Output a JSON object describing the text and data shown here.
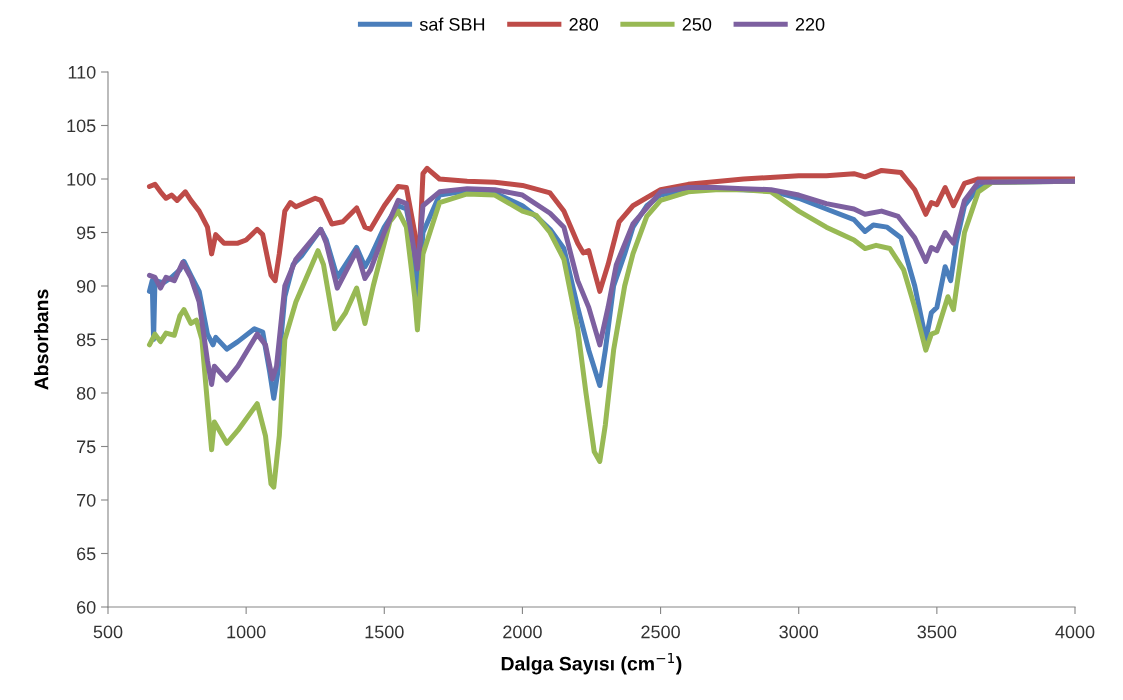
{
  "chart_data": {
    "type": "line",
    "xlabel": "Dalga Sayısı (cm$^{−1}$)",
    "ylabel": "Absorbans",
    "xlim": [
      500,
      4000
    ],
    "xticks": [
      500,
      1000,
      1500,
      2000,
      2500,
      3000,
      3500,
      4000
    ],
    "ylim": [
      60,
      110
    ],
    "yticks": [
      60,
      65,
      70,
      75,
      80,
      85,
      90,
      95,
      100,
      105,
      110
    ],
    "grid": false,
    "legend": "top",
    "marker": "none",
    "line_style": "solid",
    "series": [
      {
        "name": "saf SBH",
        "color": "#4a7ebb",
        "x": [
          650,
          660,
          665,
          670,
          700,
          730,
          760,
          775,
          800,
          830,
          860,
          880,
          890,
          930,
          970,
          1030,
          1060,
          1085,
          1100,
          1115,
          1140,
          1170,
          1200,
          1270,
          1290,
          1330,
          1400,
          1430,
          1450,
          1500,
          1550,
          1580,
          1605,
          1620,
          1640,
          1700,
          1800,
          1900,
          2000,
          2050,
          2100,
          2150,
          2200,
          2240,
          2280,
          2300,
          2330,
          2370,
          2400,
          2450,
          2500,
          2600,
          2700,
          2800,
          2900,
          3000,
          3100,
          3200,
          3240,
          3270,
          3320,
          3370,
          3420,
          3460,
          3480,
          3500,
          3530,
          3550,
          3570,
          3600,
          3650,
          3700,
          4000
        ],
        "values": [
          89.5,
          90.5,
          85,
          90.5,
          90.3,
          90.8,
          91.5,
          92.3,
          91,
          89.5,
          85.5,
          84.5,
          85.2,
          84.1,
          84.8,
          86,
          85.7,
          82,
          79.5,
          82,
          89,
          92,
          92.8,
          95.3,
          94.3,
          90.8,
          93.6,
          91.8,
          92.7,
          95.5,
          97.5,
          97.2,
          94,
          88,
          95,
          98.5,
          98.9,
          98.7,
          97.5,
          96.5,
          95.3,
          93.5,
          88,
          84,
          80.7,
          84,
          90,
          93,
          95.5,
          97.5,
          98.5,
          99,
          99.1,
          99,
          98.9,
          98.2,
          97.2,
          96.2,
          95.1,
          95.7,
          95.5,
          94.5,
          90,
          85,
          87.5,
          88,
          91.8,
          90.5,
          94,
          97.5,
          99.2,
          99.7,
          99.8
        ]
      },
      {
        "name": "280",
        "color": "#be4b48",
        "x": [
          650,
          670,
          690,
          710,
          730,
          750,
          780,
          800,
          830,
          860,
          875,
          890,
          920,
          970,
          1000,
          1040,
          1060,
          1090,
          1105,
          1120,
          1140,
          1160,
          1180,
          1250,
          1270,
          1310,
          1350,
          1400,
          1430,
          1450,
          1500,
          1550,
          1580,
          1610,
          1625,
          1640,
          1655,
          1700,
          1800,
          1900,
          2000,
          2100,
          2150,
          2200,
          2220,
          2240,
          2280,
          2310,
          2350,
          2400,
          2500,
          2600,
          2800,
          3000,
          3100,
          3200,
          3240,
          3300,
          3370,
          3420,
          3460,
          3480,
          3500,
          3530,
          3560,
          3600,
          3650,
          4000
        ],
        "values": [
          99.3,
          99.5,
          98.8,
          98.2,
          98.5,
          98,
          98.8,
          98,
          97,
          95.5,
          93,
          94.8,
          94,
          94,
          94.3,
          95.3,
          94.8,
          91,
          90.5,
          93,
          97,
          97.8,
          97.4,
          98.2,
          98,
          95.8,
          96,
          97.3,
          95.5,
          95.3,
          97.5,
          99.3,
          99.2,
          95,
          92,
          100.5,
          101,
          100,
          99.8,
          99.7,
          99.4,
          98.7,
          97,
          94,
          93.1,
          93.3,
          89.5,
          92,
          96,
          97.5,
          99,
          99.5,
          100,
          100.3,
          100.3,
          100.5,
          100.2,
          100.8,
          100.6,
          99,
          96.7,
          97.8,
          97.6,
          99.2,
          97.5,
          99.6,
          100,
          100
        ]
      },
      {
        "name": "250",
        "color": "#98b954",
        "x": [
          650,
          670,
          690,
          710,
          740,
          760,
          775,
          800,
          820,
          840,
          860,
          875,
          885,
          930,
          970,
          1040,
          1070,
          1090,
          1100,
          1120,
          1140,
          1180,
          1260,
          1280,
          1320,
          1360,
          1400,
          1430,
          1460,
          1520,
          1550,
          1580,
          1610,
          1620,
          1640,
          1700,
          1800,
          1900,
          2000,
          2050,
          2100,
          2150,
          2200,
          2230,
          2260,
          2280,
          2300,
          2330,
          2370,
          2400,
          2450,
          2500,
          2600,
          2700,
          2800,
          2900,
          3000,
          3100,
          3200,
          3240,
          3280,
          3330,
          3380,
          3420,
          3460,
          3480,
          3500,
          3540,
          3560,
          3600,
          3650,
          3700,
          4000
        ],
        "values": [
          84.5,
          85.5,
          84.8,
          85.6,
          85.4,
          87.2,
          87.8,
          86.5,
          86.8,
          85,
          79,
          74.7,
          77.3,
          75.3,
          76.5,
          79,
          76,
          71.5,
          71.2,
          76,
          85,
          88.5,
          93.3,
          92,
          86,
          87.5,
          89.8,
          86.5,
          90,
          96,
          97,
          95.5,
          89,
          85.9,
          93,
          97.8,
          98.6,
          98.5,
          97,
          96.6,
          95,
          92.5,
          86,
          80,
          74.5,
          73.6,
          77,
          84,
          90,
          93,
          96.5,
          98,
          98.8,
          99,
          99,
          98.8,
          97,
          95.5,
          94.3,
          93.5,
          93.8,
          93.5,
          91.5,
          88,
          84,
          85.5,
          85.7,
          89,
          87.8,
          95,
          98.8,
          99.7,
          99.8
        ]
      },
      {
        "name": "220",
        "color": "#7d60a0",
        "x": [
          650,
          670,
          690,
          710,
          740,
          770,
          800,
          830,
          860,
          875,
          885,
          930,
          970,
          1040,
          1070,
          1095,
          1110,
          1140,
          1180,
          1270,
          1290,
          1330,
          1400,
          1430,
          1450,
          1500,
          1550,
          1580,
          1610,
          1620,
          1640,
          1700,
          1800,
          1900,
          2000,
          2100,
          2150,
          2200,
          2240,
          2280,
          2310,
          2340,
          2400,
          2500,
          2600,
          2700,
          2800,
          2900,
          3000,
          3100,
          3200,
          3240,
          3300,
          3360,
          3420,
          3460,
          3480,
          3500,
          3530,
          3560,
          3600,
          3650,
          4000
        ],
        "values": [
          91,
          90.8,
          89.8,
          90.8,
          90.5,
          92.2,
          90.8,
          88.5,
          83,
          80.8,
          82.5,
          81.2,
          82.5,
          85.5,
          84.5,
          81.3,
          82.5,
          90,
          92.5,
          95.3,
          94,
          89.8,
          93.3,
          90.7,
          91.5,
          95,
          98,
          97.7,
          93,
          91.6,
          97.5,
          98.8,
          99.1,
          99,
          98.5,
          96.8,
          95.5,
          90.5,
          88,
          84.5,
          88,
          92,
          95.8,
          98.8,
          99.2,
          99.2,
          99.1,
          99,
          98.5,
          97.7,
          97.2,
          96.7,
          97,
          96.5,
          94.5,
          92.3,
          93.6,
          93.3,
          95,
          94,
          98,
          99.7,
          99.8
        ]
      }
    ]
  }
}
